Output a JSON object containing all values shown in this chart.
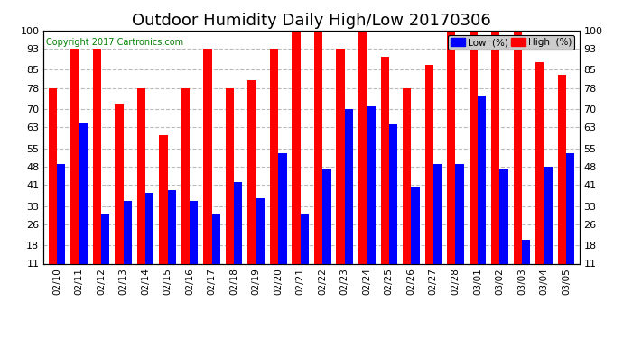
{
  "title": "Outdoor Humidity Daily High/Low 20170306",
  "copyright": "Copyright 2017 Cartronics.com",
  "dates": [
    "02/10",
    "02/11",
    "02/12",
    "02/13",
    "02/14",
    "02/15",
    "02/16",
    "02/17",
    "02/18",
    "02/19",
    "02/20",
    "02/21",
    "02/22",
    "02/23",
    "02/24",
    "02/25",
    "02/26",
    "02/27",
    "02/28",
    "03/01",
    "03/02",
    "03/03",
    "03/04",
    "03/05"
  ],
  "high": [
    78,
    93,
    93,
    72,
    78,
    60,
    78,
    93,
    78,
    81,
    93,
    100,
    100,
    93,
    100,
    90,
    78,
    87,
    100,
    100,
    100,
    100,
    88,
    83
  ],
  "low": [
    49,
    65,
    30,
    35,
    38,
    39,
    35,
    30,
    42,
    36,
    53,
    30,
    47,
    70,
    71,
    64,
    40,
    49,
    49,
    75,
    47,
    20,
    48,
    53
  ],
  "high_color": "#ff0000",
  "low_color": "#0000ff",
  "bg_color": "#ffffff",
  "plot_bg": "#ffffff",
  "grid_color": "#bbbbbb",
  "yticks": [
    11,
    18,
    26,
    33,
    41,
    48,
    55,
    63,
    70,
    78,
    85,
    93,
    100
  ],
  "ymin": 11,
  "ymax": 100,
  "bar_width": 0.38,
  "title_fontsize": 13,
  "legend_low_label": "Low  (%)",
  "legend_high_label": "High  (%)"
}
